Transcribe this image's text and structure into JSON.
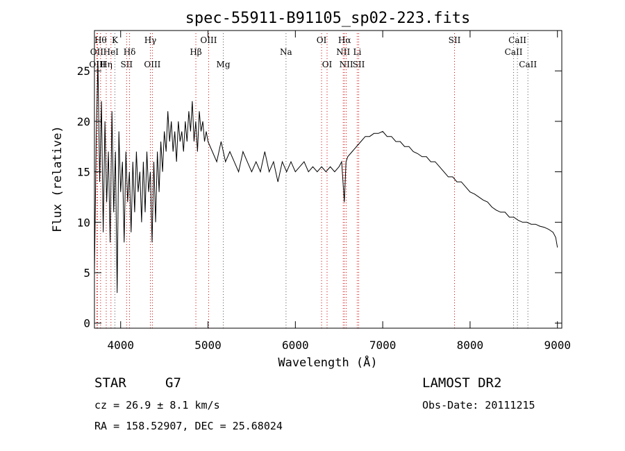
{
  "chart_data": {
    "type": "line",
    "title": "spec-55911-B91105_sp02-223.fits",
    "xlabel": "Wavelength (Å)",
    "ylabel": "Flux (relative)",
    "xlim": [
      3700,
      9050
    ],
    "ylim": [
      -0.5,
      29
    ],
    "xticks": [
      4000,
      5000,
      6000,
      7000,
      8000,
      9000
    ],
    "yticks": [
      0,
      5,
      10,
      15,
      20,
      25
    ],
    "grid": false,
    "series": [
      {
        "color": "#000000",
        "x": [
          3700,
          3720,
          3740,
          3760,
          3780,
          3800,
          3820,
          3840,
          3860,
          3880,
          3900,
          3920,
          3940,
          3960,
          3980,
          4000,
          4020,
          4040,
          4060,
          4080,
          4100,
          4120,
          4140,
          4160,
          4180,
          4200,
          4220,
          4240,
          4260,
          4280,
          4300,
          4320,
          4340,
          4360,
          4380,
          4400,
          4420,
          4440,
          4460,
          4480,
          4500,
          4520,
          4540,
          4560,
          4580,
          4600,
          4620,
          4640,
          4660,
          4680,
          4700,
          4720,
          4740,
          4760,
          4780,
          4800,
          4820,
          4840,
          4860,
          4880,
          4900,
          4920,
          4940,
          4960,
          4980,
          5000,
          5050,
          5100,
          5150,
          5200,
          5250,
          5300,
          5350,
          5400,
          5450,
          5500,
          5550,
          5600,
          5650,
          5700,
          5750,
          5800,
          5850,
          5900,
          5950,
          6000,
          6050,
          6100,
          6150,
          6200,
          6250,
          6300,
          6350,
          6400,
          6450,
          6500,
          6530,
          6560,
          6580,
          6600,
          6650,
          6700,
          6750,
          6800,
          6850,
          6900,
          6950,
          7000,
          7050,
          7100,
          7150,
          7200,
          7250,
          7300,
          7350,
          7400,
          7450,
          7500,
          7550,
          7600,
          7650,
          7700,
          7750,
          7800,
          7850,
          7900,
          7950,
          8000,
          8050,
          8100,
          8150,
          8200,
          8250,
          8300,
          8350,
          8400,
          8450,
          8500,
          8550,
          8600,
          8650,
          8700,
          8750,
          8800,
          8850,
          8900,
          8950,
          8980,
          9000
        ],
        "y": [
          5,
          18,
          26,
          14,
          22,
          9,
          20,
          12,
          17,
          8,
          21,
          11,
          17,
          3,
          19,
          13,
          16,
          8,
          17,
          12,
          15,
          9,
          16,
          11,
          17,
          13,
          15,
          10,
          16,
          11,
          17,
          13,
          15,
          8,
          16,
          10,
          17,
          13,
          18,
          15,
          19,
          17,
          21,
          18,
          20,
          17,
          19,
          16,
          20,
          18,
          19,
          17,
          20,
          18,
          21,
          19,
          22,
          18,
          20,
          17,
          21,
          19,
          20,
          18,
          19,
          18,
          17,
          16,
          18,
          16,
          17,
          16,
          15,
          17,
          16,
          15,
          16,
          15,
          17,
          15,
          16,
          14,
          16,
          15,
          16,
          15,
          15.5,
          16,
          15,
          15.5,
          15,
          15.5,
          15,
          15.5,
          15,
          15.5,
          16,
          12,
          16,
          16.5,
          17,
          17.5,
          18,
          18.5,
          18.5,
          18.8,
          18.8,
          19,
          18.5,
          18.5,
          18,
          18,
          17.5,
          17.5,
          17,
          16.8,
          16.5,
          16.5,
          16,
          16,
          15.5,
          15,
          14.5,
          14.5,
          14,
          14,
          13.5,
          13,
          12.8,
          12.5,
          12.2,
          12,
          11.5,
          11.2,
          11,
          11,
          10.5,
          10.5,
          10.2,
          10,
          10,
          9.8,
          9.8,
          9.6,
          9.5,
          9.3,
          9,
          8.5,
          7.5
        ]
      }
    ],
    "lines": [
      {
        "x": 3727,
        "label": "OII",
        "row": 1,
        "color": "#cc0000"
      },
      {
        "x": 3735,
        "label": "OIII",
        "row": 2,
        "color": "#cc0000"
      },
      {
        "x": 3770,
        "label": "Hθ",
        "row": 0,
        "color": "#cc0000"
      },
      {
        "x": 3835,
        "label": "Hη",
        "row": 2,
        "color": "#cc0000"
      },
      {
        "x": 3889,
        "label": "HeI",
        "row": 1,
        "color": "#cc0000"
      },
      {
        "x": 3934,
        "label": "K",
        "row": 0,
        "color": "#555555"
      },
      {
        "x": 4068,
        "label": "SII",
        "row": 2,
        "color": "#cc0000"
      },
      {
        "x": 4102,
        "label": "Hδ",
        "row": 1,
        "color": "#cc0000"
      },
      {
        "x": 4340,
        "label": "Hγ",
        "row": 0,
        "color": "#cc0000"
      },
      {
        "x": 4363,
        "label": "OIII",
        "row": 2,
        "color": "#cc0000"
      },
      {
        "x": 4861,
        "label": "Hβ",
        "row": 1,
        "color": "#cc0000"
      },
      {
        "x": 5007,
        "label": "OIII",
        "row": 0,
        "color": "#cc0000"
      },
      {
        "x": 5175,
        "label": "Mg",
        "row": 2,
        "color": "#555555"
      },
      {
        "x": 5893,
        "label": "Na",
        "row": 1,
        "color": "#555555"
      },
      {
        "x": 6300,
        "label": "OI",
        "row": 0,
        "color": "#cc0000"
      },
      {
        "x": 6363,
        "label": "OI",
        "row": 2,
        "color": "#cc0000"
      },
      {
        "x": 6548,
        "label": "NII",
        "row": 1,
        "color": "#cc0000"
      },
      {
        "x": 6563,
        "label": "Hα",
        "row": 0,
        "color": "#cc0000"
      },
      {
        "x": 6583,
        "label": "NII",
        "row": 2,
        "color": "#cc0000"
      },
      {
        "x": 6708,
        "label": "Li",
        "row": 1,
        "color": "#cc0000"
      },
      {
        "x": 6725,
        "label": "SII",
        "row": 2,
        "color": "#cc0000"
      },
      {
        "x": 7822,
        "label": "SII",
        "row": 0,
        "color": "#cc0000"
      },
      {
        "x": 8498,
        "label": "CaII",
        "row": 1,
        "color": "#555555"
      },
      {
        "x": 8542,
        "label": "CaII",
        "row": 0,
        "color": "#555555"
      },
      {
        "x": 8662,
        "label": "CaII",
        "row": 2,
        "color": "#555555"
      }
    ]
  },
  "footer": {
    "object_type": "STAR",
    "subclass": "G7",
    "survey": "LAMOST DR2",
    "redshift": "cz = 26.9 ± 8.1 km/s",
    "obs_date": "Obs-Date: 20111215",
    "coords": "RA = 158.52907, DEC =  25.68024"
  }
}
